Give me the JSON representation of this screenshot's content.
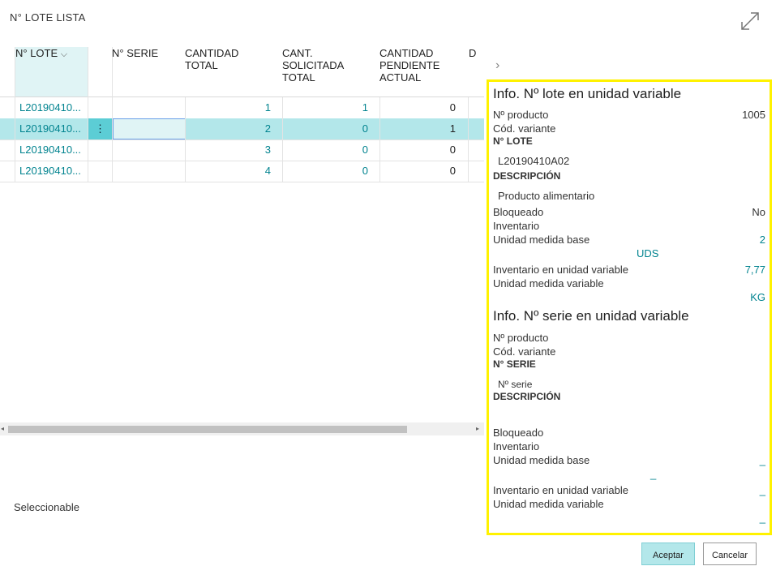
{
  "page": {
    "title": "N° LOTE LISTA"
  },
  "grid": {
    "columns": [
      "N° LOTE",
      "N° SERIE",
      "CANTIDAD\nTOTAL",
      "CANT.\nSOLICITADA\nTOTAL",
      "CANTIDAD\nPENDIENTE\nACTUAL",
      "D"
    ],
    "rows": [
      {
        "lote": "L20190410...",
        "serie": "",
        "total": "1",
        "solicitada": "1",
        "pendiente": "0"
      },
      {
        "lote": "L20190410...",
        "serie": "",
        "total": "2",
        "solicitada": "0",
        "pendiente": "1"
      },
      {
        "lote": "L20190410...",
        "serie": "",
        "total": "3",
        "solicitada": "0",
        "pendiente": "0"
      },
      {
        "lote": "L20190410...",
        "serie": "",
        "total": "4",
        "solicitada": "0",
        "pendiente": "0"
      }
    ],
    "row_menu_icon": "ellipsis-vertical-icon",
    "sort_icon": "chevron-down-icon"
  },
  "footer": {
    "status": "Seleccionable"
  },
  "panel": {
    "lot_title": "Info. Nº lote en unidad variable",
    "lot": {
      "producto_label": "Nº producto",
      "producto_value": "1005",
      "variante_label": "Cód. variante",
      "lote_label": "N° LOTE",
      "lote_value": "L20190410A02",
      "desc_label": "DESCRIPCIÓN",
      "desc_value": "Producto alimentario",
      "bloqueado_label": "Bloqueado",
      "bloqueado_value": "No",
      "inventario_label": "Inventario",
      "umb_label": "Unidad medida base",
      "umb_value": "2",
      "umb_unit": "UDS",
      "inv_var_label": "Inventario en unidad variable",
      "inv_var_value": "7,77",
      "umv_label": "Unidad medida variable",
      "umv_value": "KG"
    },
    "serial_title": "Info. Nº serie en unidad variable",
    "serial": {
      "producto_label": "Nº producto",
      "variante_label": "Cód. variante",
      "serie_label": "N° SERIE",
      "serie_placeholder": "Nº serie",
      "desc_label": "DESCRIPCIÓN",
      "bloqueado_label": "Bloqueado",
      "inventario_label": "Inventario",
      "umb_label": "Unidad medida base",
      "umb_value": "_",
      "umb_unit": "_",
      "inv_var_label": "Inventario en unidad variable",
      "inv_var_value": "_",
      "umv_label": "Unidad medida variable",
      "umv_value": "_"
    }
  },
  "buttons": {
    "ok": "Aceptar",
    "cancel": "Cancelar"
  },
  "colors": {
    "accent": "#00838f",
    "selected_row": "#b3e7ea",
    "highlight_border": "#fff200"
  }
}
